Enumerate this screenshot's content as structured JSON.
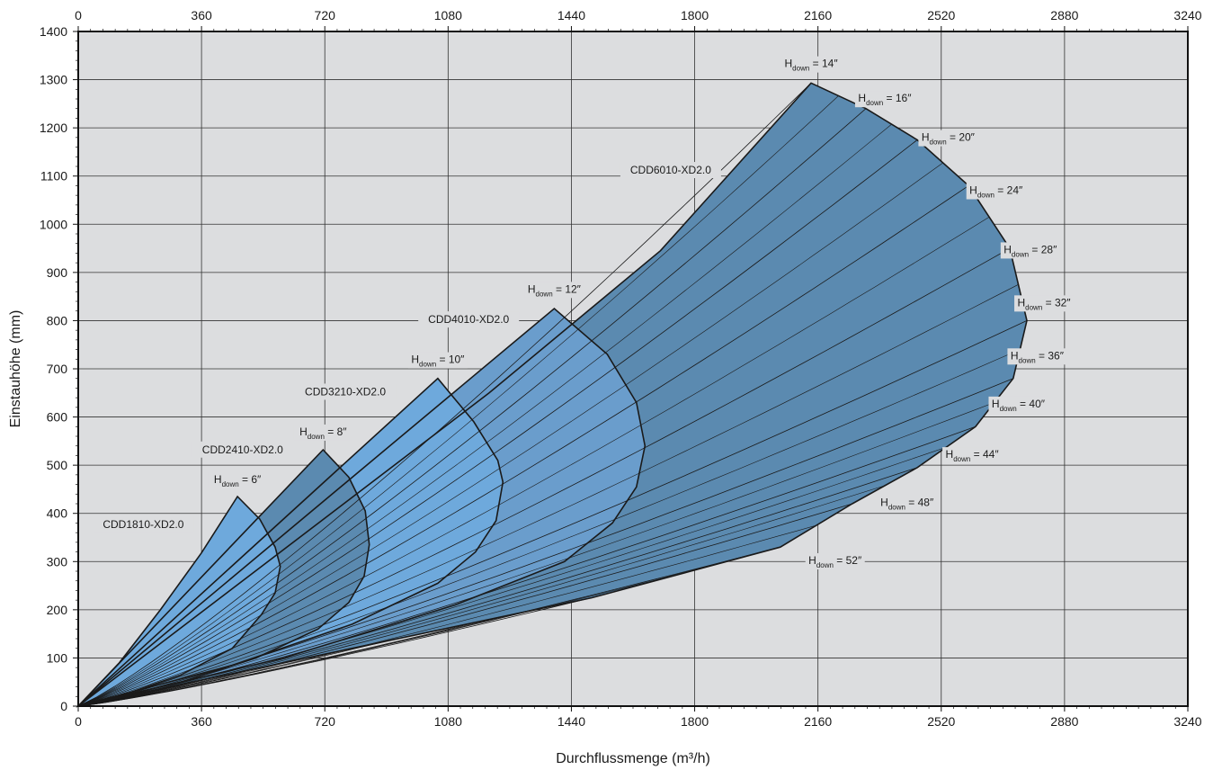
{
  "chart_data": {
    "type": "area",
    "xlabel": "Durchflussmenge (m³/h)",
    "ylabel": "Einstauhöhe (mm)",
    "xlim": [
      0,
      3240
    ],
    "ylim": [
      0,
      1400
    ],
    "x_ticks": [
      0,
      360,
      720,
      1080,
      1440,
      1800,
      2160,
      2520,
      2880,
      3240
    ],
    "y_ticks": [
      0,
      100,
      200,
      300,
      400,
      500,
      600,
      700,
      800,
      900,
      1000,
      1100,
      1200,
      1300,
      1400
    ],
    "top_axis_ticks": [
      0,
      360,
      720,
      1080,
      1440,
      1800,
      2160,
      2520,
      2880,
      3240
    ],
    "grid": true,
    "colors": {
      "plot_bg": "#dcdddf",
      "light_blue": "#6ea9dc",
      "mid_blue": "#6a9dcc",
      "dark_blue": "#5b8ab0",
      "outline": "#1a1a1a"
    },
    "series": [
      {
        "name": "CDD1810-XD2.0",
        "color": "#6ea9dc",
        "peak": [
          465,
          435
        ],
        "max_x": 590,
        "max_y": 290,
        "outline": [
          [
            0,
            0
          ],
          [
            120,
            90
          ],
          [
            240,
            200
          ],
          [
            360,
            318
          ],
          [
            465,
            435
          ],
          [
            530,
            388
          ],
          [
            575,
            330
          ],
          [
            590,
            290
          ],
          [
            575,
            235
          ],
          [
            535,
            190
          ],
          [
            450,
            120
          ],
          [
            300,
            65
          ],
          [
            150,
            28
          ],
          [
            0,
            0
          ]
        ]
      },
      {
        "name": "CDD2410-XD2.0",
        "color": "#5b8ab0",
        "peak": [
          715,
          532
        ],
        "max_x": 850,
        "max_y": 335,
        "outline": [
          [
            0,
            0
          ],
          [
            715,
            532
          ],
          [
            790,
            475
          ],
          [
            838,
            405
          ],
          [
            850,
            335
          ],
          [
            835,
            270
          ],
          [
            790,
            215
          ],
          [
            700,
            160
          ],
          [
            520,
            100
          ],
          [
            300,
            50
          ],
          [
            0,
            0
          ]
        ]
      },
      {
        "name": "CDD3210-XD2.0",
        "color": "#6ea9dc",
        "peak": [
          1050,
          680
        ],
        "max_x": 1240,
        "max_y": 465,
        "outline": [
          [
            0,
            0
          ],
          [
            1050,
            680
          ],
          [
            1155,
            590
          ],
          [
            1225,
            510
          ],
          [
            1240,
            465
          ],
          [
            1220,
            385
          ],
          [
            1160,
            320
          ],
          [
            1050,
            255
          ],
          [
            800,
            170
          ],
          [
            450,
            85
          ],
          [
            0,
            0
          ]
        ]
      },
      {
        "name": "CDD4010-XD2.0",
        "color": "#6a9dcc",
        "peak": [
          1390,
          825
        ],
        "max_x": 1655,
        "max_y": 540,
        "outline": [
          [
            0,
            0
          ],
          [
            1390,
            825
          ],
          [
            1545,
            730
          ],
          [
            1630,
            630
          ],
          [
            1655,
            540
          ],
          [
            1630,
            455
          ],
          [
            1560,
            380
          ],
          [
            1420,
            300
          ],
          [
            1100,
            210
          ],
          [
            600,
            100
          ],
          [
            0,
            0
          ]
        ]
      },
      {
        "name": "CDD6010-XD2.0",
        "color": "#5b8ab0",
        "peak": [
          2140,
          1293
        ],
        "max_x": 2770,
        "max_y": 800,
        "outline": [
          [
            0,
            0
          ],
          [
            1200,
            650
          ],
          [
            1700,
            945
          ],
          [
            2140,
            1293
          ],
          [
            2300,
            1240
          ],
          [
            2450,
            1175
          ],
          [
            2600,
            1080
          ],
          [
            2720,
            950
          ],
          [
            2770,
            800
          ],
          [
            2730,
            680
          ],
          [
            2620,
            580
          ],
          [
            2450,
            495
          ],
          [
            2260,
            420
          ],
          [
            2050,
            330
          ],
          [
            1500,
            225
          ],
          [
            900,
            135
          ],
          [
            400,
            60
          ],
          [
            0,
            0
          ]
        ]
      }
    ],
    "hdown_curve_exponent": 1.15,
    "hdown_extra_lines": [
      0.22,
      0.3,
      0.38,
      0.44,
      0.5,
      0.57,
      0.63,
      0.69,
      0.75,
      0.8,
      0.86
    ],
    "hdown_labels": [
      {
        "label": "H",
        "sub": "down",
        "value": "= 6″",
        "at": [
          465,
          463
        ]
      },
      {
        "label": "H",
        "sub": "down",
        "value": "= 8″",
        "at": [
          715,
          562
        ]
      },
      {
        "label": "H",
        "sub": "down",
        "value": "= 10″",
        "at": [
          1050,
          712
        ]
      },
      {
        "label": "H",
        "sub": "down",
        "value": "= 12″",
        "at": [
          1390,
          858
        ]
      },
      {
        "label": "H",
        "sub": "down",
        "value": "= 14″",
        "at": [
          2140,
          1326
        ]
      },
      {
        "label": "H",
        "sub": "down",
        "value": "= 16″",
        "at": [
          2355,
          1254
        ]
      },
      {
        "label": "H",
        "sub": "down",
        "value": "= 20″",
        "at": [
          2540,
          1173
        ]
      },
      {
        "label": "H",
        "sub": "down",
        "value": "= 24″",
        "at": [
          2680,
          1063
        ]
      },
      {
        "label": "H",
        "sub": "down",
        "value": "= 28″",
        "at": [
          2780,
          940
        ]
      },
      {
        "label": "H",
        "sub": "down",
        "value": "= 32″",
        "at": [
          2820,
          830
        ]
      },
      {
        "label": "H",
        "sub": "down",
        "value": "= 36″",
        "at": [
          2800,
          720
        ]
      },
      {
        "label": "H",
        "sub": "down",
        "value": "= 40″",
        "at": [
          2745,
          620
        ]
      },
      {
        "label": "H",
        "sub": "down",
        "value": "= 44″",
        "at": [
          2610,
          515
        ]
      },
      {
        "label": "H",
        "sub": "down",
        "value": "= 48″",
        "at": [
          2420,
          415
        ]
      },
      {
        "label": "H",
        "sub": "down",
        "value": "= 52″",
        "at": [
          2210,
          295
        ]
      }
    ],
    "series_labels": [
      {
        "text": "CDD1810-XD2.0",
        "at": [
          190,
          370
        ]
      },
      {
        "text": "CDD2410-XD2.0",
        "at": [
          480,
          525
        ]
      },
      {
        "text": "CDD3210-XD2.0",
        "at": [
          780,
          645
        ]
      },
      {
        "text": "CDD4010-XD2.0",
        "at": [
          1140,
          795
        ]
      },
      {
        "text": "CDD6010-XD2.0",
        "at": [
          1730,
          1105
        ]
      }
    ]
  }
}
